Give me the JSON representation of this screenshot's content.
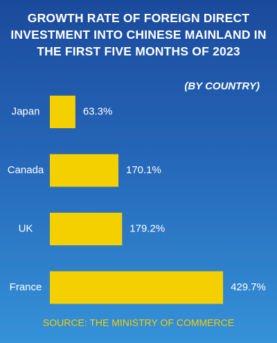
{
  "chart_data": {
    "type": "bar",
    "orientation": "horizontal",
    "title": "GROWTH RATE OF FOREIGN DIRECT INVESTMENT INTO CHINESE MAINLAND IN THE FIRST FIVE MONTHS OF 2023",
    "subtitle": "(BY COUNTRY)",
    "categories": [
      "Japan",
      "Canada",
      "UK",
      "France"
    ],
    "values": [
      63.3,
      170.1,
      179.2,
      429.7
    ],
    "value_labels": [
      "63.3%",
      "170.1%",
      "179.2%",
      "429.7%"
    ],
    "color": "#f5d000",
    "source": "SOURCE: THE MINISTRY OF COMMERCE"
  }
}
